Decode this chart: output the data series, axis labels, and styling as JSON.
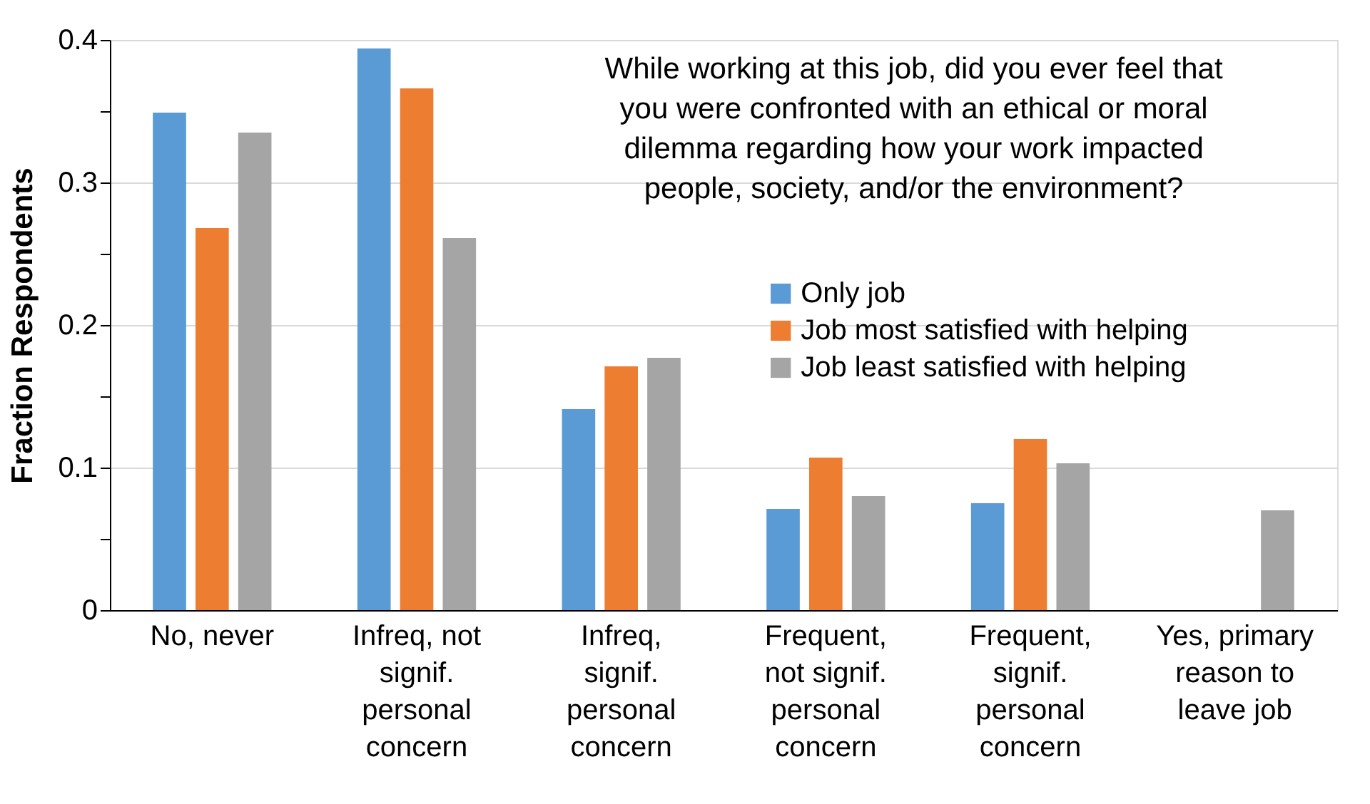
{
  "chart_data": {
    "type": "bar",
    "ylabel": "Fraction Respondents",
    "categories": [
      "No, never",
      "Infreq, not signif. personal concern",
      "Infreq, signif. personal concern",
      "Frequent, not signif. personal concern",
      "Frequent, signif. personal concern",
      "Yes, primary reason to leave job"
    ],
    "series": [
      {
        "name": "Only job",
        "color": "#5b9bd5",
        "values": [
          0.349,
          0.394,
          0.141,
          0.071,
          0.075,
          0
        ]
      },
      {
        "name": "Job most satisfied with helping",
        "color": "#ed7d31",
        "values": [
          0.268,
          0.366,
          0.171,
          0.107,
          0.12,
          0
        ]
      },
      {
        "name": "Job least satisfied with helping",
        "color": "#a5a5a5",
        "values": [
          0.335,
          0.261,
          0.177,
          0.08,
          0.103,
          0.07
        ]
      }
    ],
    "ylim": [
      0,
      0.4
    ],
    "yticks": [
      0,
      {
        "value": 0.05,
        "label": null
      },
      0.1,
      {
        "value": 0.15,
        "label": null
      },
      0.2,
      {
        "value": 0.25,
        "label": null
      },
      0.3,
      {
        "value": 0.35,
        "label": null
      },
      0.4
    ],
    "grid": "y",
    "legend": "right",
    "annotations": [
      "While working at this job, did you ever feel that\nyou were confronted with an ethical or moral\ndilemma regarding how your work impacted\npeople, society, and/or the environment?"
    ]
  }
}
